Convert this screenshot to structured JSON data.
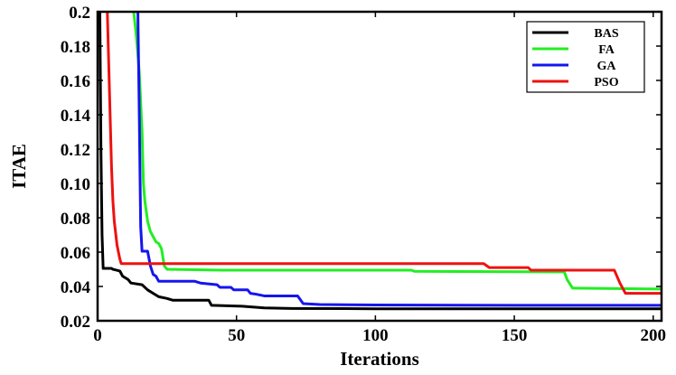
{
  "chart_data": {
    "type": "line",
    "title": "",
    "xlabel": "Iterations",
    "ylabel": "ITAE",
    "xlim": [
      0,
      203
    ],
    "ylim": [
      0.02,
      0.2
    ],
    "xticks": [
      0,
      50,
      100,
      150,
      200
    ],
    "yticks": [
      0.02,
      0.04,
      0.06,
      0.08,
      0.1,
      0.12,
      0.14,
      0.16,
      0.18,
      0.2
    ],
    "ytick_labels": [
      "0.02",
      "0.04",
      "0.06",
      "0.08",
      "0.10",
      "0.12",
      "0.14",
      "0.16",
      "0.18",
      "0.2"
    ],
    "grid": false,
    "legend_position": "top-right",
    "series": [
      {
        "name": "BAS",
        "color": "#000000",
        "points": [
          [
            0.8,
            0.2
          ],
          [
            1.2,
            0.12
          ],
          [
            1.6,
            0.07
          ],
          [
            2,
            0.0505
          ],
          [
            5,
            0.0505
          ],
          [
            5.5,
            0.05
          ],
          [
            8,
            0.049
          ],
          [
            9,
            0.046
          ],
          [
            11,
            0.044
          ],
          [
            12,
            0.042
          ],
          [
            16,
            0.041
          ],
          [
            18,
            0.038
          ],
          [
            20,
            0.036
          ],
          [
            22,
            0.034
          ],
          [
            25,
            0.033
          ],
          [
            27,
            0.032
          ],
          [
            40,
            0.032
          ],
          [
            41,
            0.029
          ],
          [
            52,
            0.0285
          ],
          [
            60,
            0.0275
          ],
          [
            70,
            0.0272
          ],
          [
            100,
            0.027
          ],
          [
            150,
            0.027
          ],
          [
            203,
            0.027
          ]
        ]
      },
      {
        "name": "FA",
        "color": "#22ee22",
        "points": [
          [
            13,
            0.2
          ],
          [
            14,
            0.185
          ],
          [
            15,
            0.165
          ],
          [
            16,
            0.13
          ],
          [
            16.5,
            0.1
          ],
          [
            17,
            0.09
          ],
          [
            18,
            0.078
          ],
          [
            19,
            0.072
          ],
          [
            20,
            0.069
          ],
          [
            21,
            0.066
          ],
          [
            22,
            0.065
          ],
          [
            23,
            0.062
          ],
          [
            24,
            0.052
          ],
          [
            25,
            0.05
          ],
          [
            45,
            0.0495
          ],
          [
            113,
            0.0495
          ],
          [
            114,
            0.0488
          ],
          [
            168,
            0.0485
          ],
          [
            169,
            0.044
          ],
          [
            171,
            0.039
          ],
          [
            203,
            0.0385
          ]
        ]
      },
      {
        "name": "GA",
        "color": "#1515ee",
        "points": [
          [
            14.5,
            0.2
          ],
          [
            15,
            0.14
          ],
          [
            15.5,
            0.075
          ],
          [
            16,
            0.0605
          ],
          [
            18,
            0.0605
          ],
          [
            19,
            0.052
          ],
          [
            20,
            0.047
          ],
          [
            21,
            0.046
          ],
          [
            22,
            0.043
          ],
          [
            35,
            0.043
          ],
          [
            37,
            0.042
          ],
          [
            43,
            0.041
          ],
          [
            44,
            0.0395
          ],
          [
            48,
            0.0395
          ],
          [
            49,
            0.038
          ],
          [
            54,
            0.038
          ],
          [
            55,
            0.036
          ],
          [
            57,
            0.0355
          ],
          [
            60,
            0.0345
          ],
          [
            72,
            0.0345
          ],
          [
            74,
            0.03
          ],
          [
            80,
            0.0295
          ],
          [
            100,
            0.0292
          ],
          [
            150,
            0.029
          ],
          [
            203,
            0.029
          ]
        ]
      },
      {
        "name": "PSO",
        "color": "#ee1111",
        "points": [
          [
            3.5,
            0.2
          ],
          [
            4,
            0.17
          ],
          [
            4.5,
            0.14
          ],
          [
            5,
            0.11
          ],
          [
            5.5,
            0.09
          ],
          [
            6,
            0.078
          ],
          [
            7,
            0.064
          ],
          [
            8,
            0.056
          ],
          [
            8.5,
            0.0533
          ],
          [
            139,
            0.0533
          ],
          [
            141,
            0.051
          ],
          [
            155,
            0.051
          ],
          [
            156,
            0.0495
          ],
          [
            186,
            0.0495
          ],
          [
            188,
            0.042
          ],
          [
            190,
            0.036
          ],
          [
            203,
            0.036
          ]
        ]
      }
    ]
  }
}
